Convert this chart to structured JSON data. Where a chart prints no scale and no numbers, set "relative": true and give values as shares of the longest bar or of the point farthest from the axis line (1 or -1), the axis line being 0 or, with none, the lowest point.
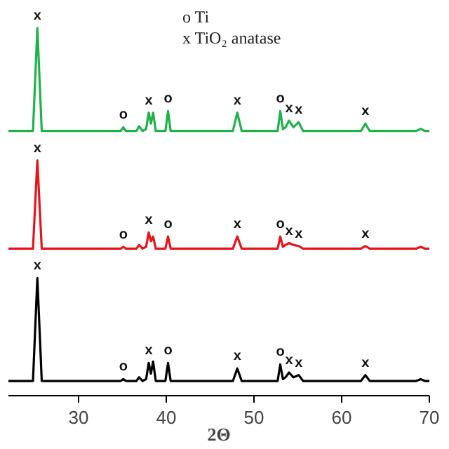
{
  "chart_data": {
    "type": "line",
    "relative": true,
    "xlabel": "2Θ",
    "xlim": [
      22,
      70
    ],
    "xticks": [
      30,
      40,
      50,
      60,
      70
    ],
    "grid": false,
    "x": [
      22,
      24.8,
      25.3,
      25.8,
      34.8,
      35.1,
      35.4,
      36.6,
      36.9,
      37.3,
      37.7,
      38.0,
      38.25,
      38.5,
      38.8,
      39.9,
      40.2,
      40.5,
      47.6,
      48.1,
      48.6,
      52.7,
      53.0,
      53.3,
      53.6,
      54.0,
      54.5,
      55.1,
      55.6,
      62.2,
      62.7,
      63.2,
      68.5,
      69.0,
      69.5,
      70
    ],
    "series": [
      {
        "color": "#1fb24a",
        "values": [
          0.72,
          0.72,
          1.0,
          0.72,
          0.72,
          0.73,
          0.72,
          0.72,
          0.733,
          0.72,
          0.725,
          0.77,
          0.74,
          0.77,
          0.72,
          0.72,
          0.774,
          0.72,
          0.72,
          0.77,
          0.72,
          0.72,
          0.774,
          0.725,
          0.73,
          0.748,
          0.73,
          0.744,
          0.72,
          0.72,
          0.74,
          0.72,
          0.72,
          0.726,
          0.72,
          0.72
        ]
      },
      {
        "color": "#e8141c",
        "values": [
          0.4,
          0.4,
          0.64,
          0.4,
          0.4,
          0.405,
          0.4,
          0.4,
          0.41,
          0.4,
          0.405,
          0.444,
          0.42,
          0.433,
          0.4,
          0.4,
          0.433,
          0.4,
          0.4,
          0.433,
          0.4,
          0.4,
          0.433,
          0.405,
          0.41,
          0.415,
          0.41,
          0.407,
          0.4,
          0.4,
          0.407,
          0.4,
          0.4,
          0.405,
          0.4,
          0.4
        ]
      },
      {
        "color": "#000000",
        "values": [
          0.04,
          0.04,
          0.32,
          0.04,
          0.04,
          0.045,
          0.04,
          0.04,
          0.05,
          0.04,
          0.045,
          0.089,
          0.06,
          0.093,
          0.04,
          0.04,
          0.089,
          0.04,
          0.04,
          0.074,
          0.04,
          0.04,
          0.085,
          0.045,
          0.05,
          0.063,
          0.05,
          0.056,
          0.04,
          0.04,
          0.056,
          0.04,
          0.04,
          0.045,
          0.04,
          0.04
        ]
      }
    ],
    "annotations": [
      "o  Ti",
      "x  TiO₂ anatase",
      {
        "text": "x",
        "x": 25.3,
        "y": 1.0
      },
      {
        "text": "o",
        "x": 35.1,
        "y": 0.73
      },
      {
        "text": "x",
        "x": 38.0,
        "y": 0.77
      },
      {
        "text": "o",
        "x": 40.2,
        "y": 0.774
      },
      {
        "text": "x",
        "x": 48.1,
        "y": 0.77
      },
      {
        "text": "o",
        "x": 53.0,
        "y": 0.774
      },
      {
        "text": "x",
        "x": 54.0,
        "y": 0.748
      },
      {
        "text": "x",
        "x": 55.1,
        "y": 0.744
      },
      {
        "text": "x",
        "x": 62.7,
        "y": 0.74
      },
      {
        "text": "x",
        "x": 25.3,
        "y": 0.64
      },
      {
        "text": "o",
        "x": 35.1,
        "y": 0.405
      },
      {
        "text": "x",
        "x": 38.0,
        "y": 0.444
      },
      {
        "text": "o",
        "x": 40.2,
        "y": 0.433
      },
      {
        "text": "x",
        "x": 48.1,
        "y": 0.433
      },
      {
        "text": "o",
        "x": 53.0,
        "y": 0.433
      },
      {
        "text": "x",
        "x": 54.0,
        "y": 0.415
      },
      {
        "text": "x",
        "x": 55.1,
        "y": 0.407
      },
      {
        "text": "x",
        "x": 62.7,
        "y": 0.407
      },
      {
        "text": "x",
        "x": 25.3,
        "y": 0.32
      },
      {
        "text": "o",
        "x": 35.1,
        "y": 0.045
      },
      {
        "text": "x",
        "x": 38.0,
        "y": 0.089
      },
      {
        "text": "o",
        "x": 40.2,
        "y": 0.089
      },
      {
        "text": "x",
        "x": 48.1,
        "y": 0.074
      },
      {
        "text": "o",
        "x": 53.0,
        "y": 0.085
      },
      {
        "text": "x",
        "x": 54.0,
        "y": 0.063
      },
      {
        "text": "x",
        "x": 55.1,
        "y": 0.056
      },
      {
        "text": "x",
        "x": 62.7,
        "y": 0.056
      }
    ]
  }
}
